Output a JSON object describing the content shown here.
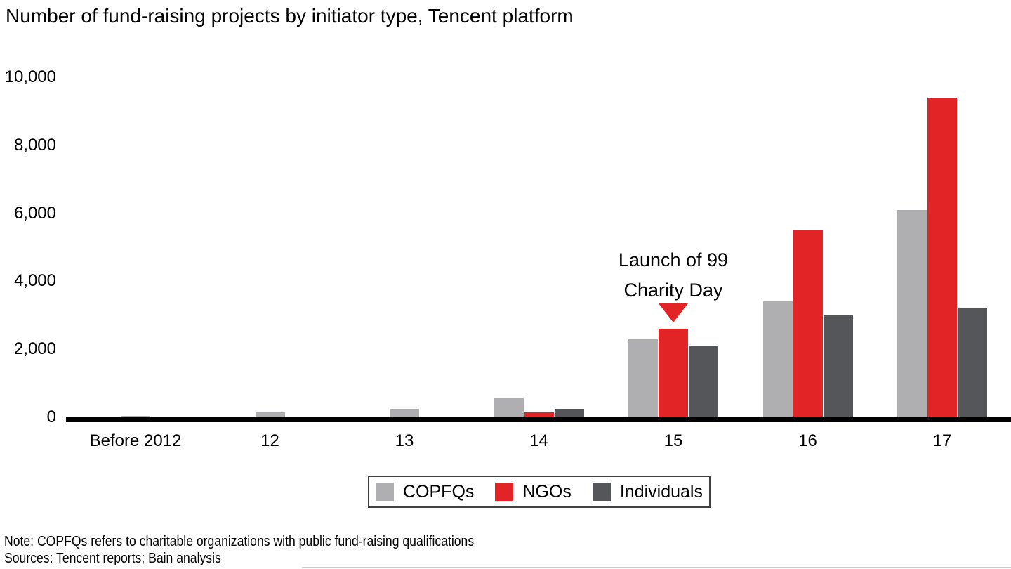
{
  "title": "Number of fund-raising projects by initiator type, Tencent platform",
  "colors": {
    "copfqs": "#afafb1",
    "ngos": "#e22426",
    "individuals": "#55565a",
    "axis": "#000000",
    "legend_border": "#404040",
    "bottom_rule": "#c9cacc"
  },
  "chart_data": {
    "type": "bar",
    "title": "Number of fund-raising projects by initiator type, Tencent platform",
    "xlabel": "",
    "ylabel": "",
    "ylim": [
      0,
      10000
    ],
    "grid": false,
    "legend_position": "bottom",
    "categories": [
      "Before 2012",
      "12",
      "13",
      "14",
      "15",
      "16",
      "17"
    ],
    "series": [
      {
        "name": "COPFQs",
        "color_key": "copfqs",
        "values": [
          50,
          150,
          250,
          550,
          2300,
          3400,
          6100
        ]
      },
      {
        "name": "NGOs",
        "color_key": "ngos",
        "values": [
          0,
          0,
          0,
          150,
          2600,
          5500,
          9400
        ]
      },
      {
        "name": "Individuals",
        "color_key": "individuals",
        "values": [
          0,
          0,
          0,
          250,
          2100,
          3000,
          3200
        ]
      }
    ],
    "yticks": [
      0,
      2000,
      4000,
      6000,
      8000,
      10000
    ],
    "ytick_labels": [
      "0",
      "2,000",
      "4,000",
      "6,000",
      "8,000",
      "10,000"
    ],
    "annotation": {
      "line1": "Launch of 99",
      "line2": "Charity Day",
      "target_category": "15",
      "marker": "down-triangle"
    }
  },
  "legend": {
    "items": [
      {
        "label": "COPFQs",
        "color_key": "copfqs"
      },
      {
        "label": "NGOs",
        "color_key": "ngos"
      },
      {
        "label": "Individuals",
        "color_key": "individuals"
      }
    ]
  },
  "footer": {
    "note": "Note: COPFQs refers to charitable organizations with public fund-raising qualifications",
    "sources": "Sources: Tencent reports; Bain analysis"
  }
}
